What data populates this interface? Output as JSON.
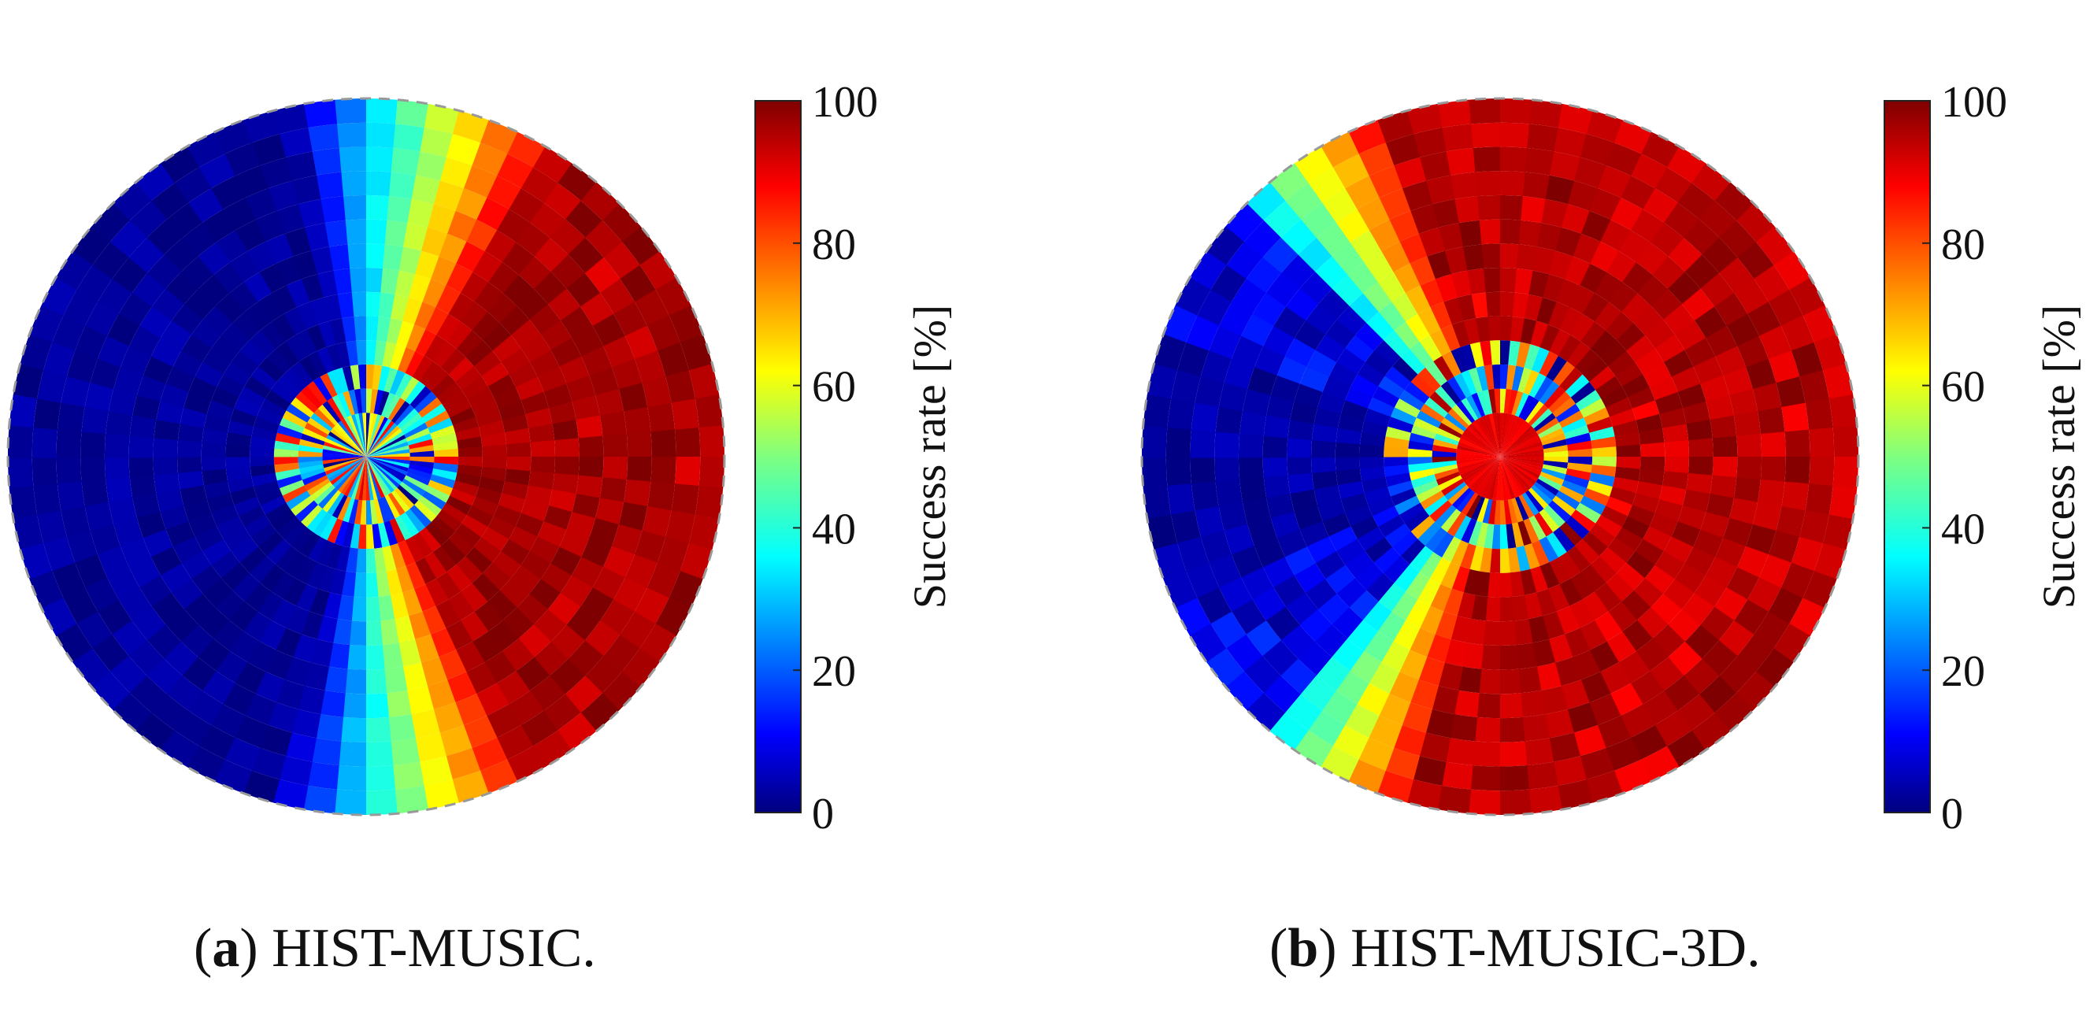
{
  "chart_data": [
    {
      "type": "heatmap",
      "subtype": "polar",
      "panel": "a",
      "title": "HIST-MUSIC.",
      "caption_label": "a",
      "description_model": {
        "low_sector_from_deg": 105,
        "low_sector_to_deg": 255,
        "high_sector_from_deg": -60,
        "high_sector_to_deg": 55,
        "inner_radius_rings": 2
      },
      "colorbar": {
        "label": "Success rate [%]",
        "ticks": [
          "0",
          "20",
          "40",
          "60",
          "80",
          "100"
        ],
        "range": [
          0,
          100
        ],
        "colormap": "jet"
      }
    },
    {
      "type": "heatmap",
      "subtype": "polar",
      "panel": "b",
      "title": "HIST-MUSIC-3D.",
      "caption_label": "b",
      "description_model": {
        "low_sector_from_deg": 135,
        "low_sector_to_deg": 230,
        "high_sector_from_deg": -105,
        "high_sector_to_deg": 110,
        "inner_radius_rings": 3
      },
      "colorbar": {
        "label": "Success rate [%]",
        "ticks": [
          "0",
          "20",
          "40",
          "60",
          "80",
          "100"
        ],
        "range": [
          0,
          100
        ],
        "colormap": "jet"
      }
    }
  ]
}
